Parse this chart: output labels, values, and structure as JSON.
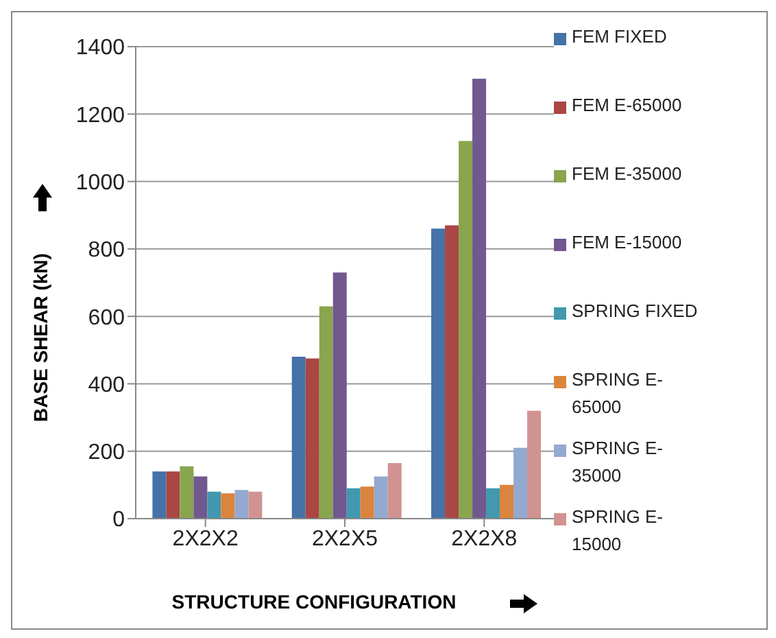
{
  "chart_data": {
    "type": "bar",
    "xlabel": "STRUCTURE CONFIGURATION",
    "ylabel": "BASE SHEAR (kN)",
    "categories": [
      "2X2X2",
      "2X2X5",
      "2X2X8"
    ],
    "series": [
      {
        "name": "FEM FIXED",
        "color": "#4572a7",
        "values": [
          140,
          480,
          860
        ]
      },
      {
        "name": "FEM E-65000",
        "color": "#aa4643",
        "values": [
          140,
          475,
          870
        ]
      },
      {
        "name": "FEM E-35000",
        "color": "#89a54e",
        "values": [
          155,
          630,
          1120
        ]
      },
      {
        "name": "FEM E-15000",
        "color": "#71588f",
        "values": [
          125,
          730,
          1305
        ]
      },
      {
        "name": "SPRING FIXED",
        "color": "#4198af",
        "values": [
          80,
          90,
          90
        ]
      },
      {
        "name": "SPRING E-65000",
        "color": "#db843d",
        "values": [
          75,
          95,
          100
        ]
      },
      {
        "name": "SPRING E-35000",
        "color": "#93a9cf",
        "values": [
          85,
          125,
          210
        ]
      },
      {
        "name": "SPRING E-15000",
        "color": "#d19392",
        "values": [
          80,
          165,
          320
        ]
      }
    ],
    "ylim": [
      0,
      1400
    ],
    "yticks": [
      0,
      200,
      400,
      600,
      800,
      1000,
      1200,
      1400
    ],
    "grid": "y",
    "legend": "right"
  }
}
